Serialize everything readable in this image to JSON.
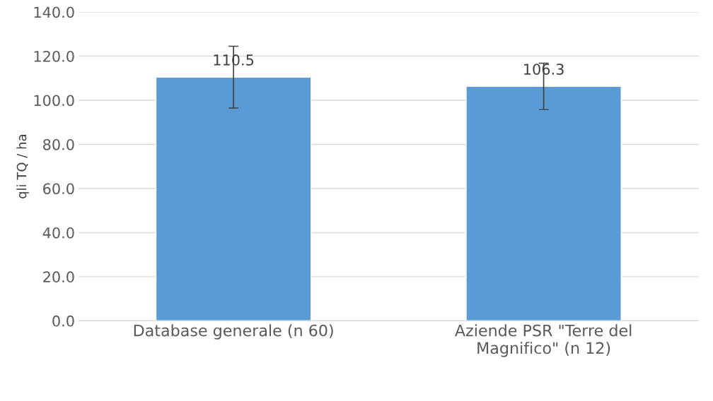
{
  "chart_data": {
    "type": "bar",
    "ylabel": "qli TQ / ha",
    "categories": [
      "Database generale (n 60)",
      "Aziende PSR \"Terre del\nMagnifico\" (n 12)"
    ],
    "values": [
      110.5,
      106.3
    ],
    "errors": [
      14,
      10.5
    ],
    "color": "#5b9bd5",
    "ylim": [
      0,
      140
    ],
    "yticks": [
      {
        "value": 0,
        "label": "0.0"
      },
      {
        "value": 20,
        "label": "20.0"
      },
      {
        "value": 40,
        "label": "40.0"
      },
      {
        "value": 60,
        "label": "60.0"
      },
      {
        "value": 80,
        "label": "80.0"
      },
      {
        "value": 100,
        "label": "100.0"
      },
      {
        "value": 120,
        "label": "120.0"
      },
      {
        "value": 140,
        "label": "140.0"
      }
    ],
    "grid": "y",
    "data_labels": true
  }
}
